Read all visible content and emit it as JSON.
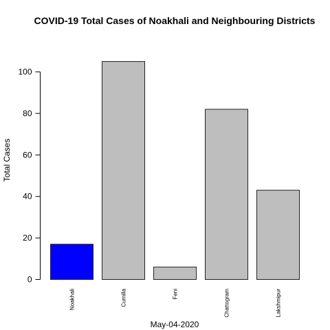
{
  "chart_data": {
    "type": "bar",
    "title": "COVID-19 Total Cases of Noakhali and Neighbouring Districts",
    "xlabel": "May-04-2020",
    "ylabel": "Total Cases",
    "categories": [
      "Noakhali",
      "Cumilla",
      "Feni",
      "Chattogram",
      "Lakshmipur"
    ],
    "values": [
      17,
      105,
      6,
      82,
      43
    ],
    "colors": [
      "#0000ff",
      "#bebebe",
      "#bebebe",
      "#bebebe",
      "#bebebe"
    ],
    "ylim": [
      0,
      105
    ],
    "yticks": [
      0,
      20,
      40,
      60,
      80,
      100
    ],
    "grid": false,
    "legend": "none"
  }
}
